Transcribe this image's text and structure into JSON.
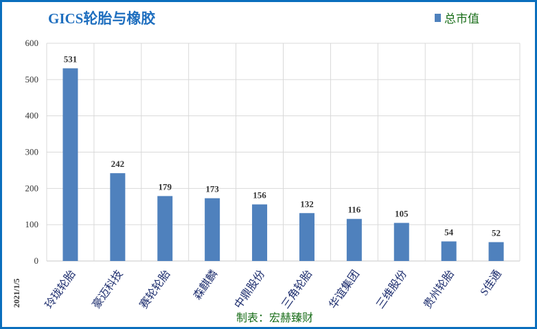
{
  "chart_data": {
    "type": "bar",
    "title": "GICS轮胎与橡胶",
    "categories": [
      "玲珑轮胎",
      "豪迈科技",
      "赛轮轮胎",
      "森麒麟",
      "中鼎股份",
      "三角轮胎",
      "华谊集团",
      "三维股份",
      "贵州轮胎",
      "S佳通"
    ],
    "series": [
      {
        "name": "总市值",
        "values": [
          531,
          242,
          179,
          173,
          156,
          132,
          116,
          105,
          54,
          52
        ]
      }
    ],
    "ylim": [
      0,
      600
    ],
    "yticks": [
      0,
      100,
      200,
      300,
      400,
      500,
      600
    ],
    "grid": true,
    "legend_position": "top-right",
    "bar_color": "#4f81bd",
    "side_note": "2021/1/5",
    "footer": "制表：宏赫臻财"
  }
}
